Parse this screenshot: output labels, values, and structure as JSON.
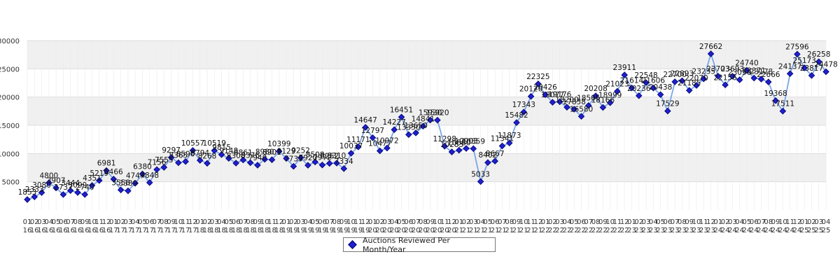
{
  "chart_data": {
    "type": "line",
    "title": "",
    "xlabel": "",
    "ylabel": "",
    "ylim": [
      0,
      30000
    ],
    "yticks": [
      5000,
      10000,
      15000,
      20000,
      25000,
      30000
    ],
    "ytick_labels": [
      "5000",
      "10000",
      "15000",
      "20000",
      "25000",
      "30000"
    ],
    "grid": true,
    "legend_position": "bottom-center",
    "line_color": "#7aa6e6",
    "marker_color": "#1f1fd0",
    "band_color": "#f0f0f0",
    "categories": [
      "01/16",
      "02/16",
      "03/16",
      "04/16",
      "05/16",
      "06/16",
      "07/16",
      "08/16",
      "09/16",
      "10/16",
      "11/16",
      "12/16",
      "01/17",
      "02/17",
      "03/17",
      "04/17",
      "05/17",
      "06/17",
      "07/17",
      "08/17",
      "09/17",
      "10/17",
      "11/17",
      "12/17",
      "01/18",
      "02/18",
      "03/18",
      "04/18",
      "05/18",
      "06/18",
      "07/18",
      "08/18",
      "09/18",
      "10/18",
      "11/18",
      "12/18",
      "01/19",
      "02/19",
      "03/19",
      "04/19",
      "05/19",
      "06/19",
      "07/19",
      "08/19",
      "09/19",
      "10/19",
      "11/19",
      "12/19",
      "01/20",
      "02/20",
      "03/20",
      "04/20",
      "05/20",
      "06/20",
      "07/20",
      "08/20",
      "09/20",
      "10/20",
      "11/20",
      "12/20",
      "01/21",
      "02/21",
      "03/21",
      "04/21",
      "05/21",
      "06/21",
      "07/21",
      "08/21",
      "09/21",
      "10/21",
      "11/21",
      "12/21",
      "01/22",
      "02/22",
      "03/22",
      "04/22",
      "05/22",
      "06/22",
      "07/22",
      "08/22",
      "09/22",
      "10/22",
      "11/22",
      "12/22",
      "01/23",
      "02/23",
      "03/23",
      "04/23",
      "05/23",
      "06/23",
      "07/23",
      "08/23",
      "09/23",
      "10/23",
      "11/23",
      "12/23",
      "01/24",
      "02/24",
      "03/24",
      "04/24",
      "05/24",
      "06/24",
      "07/24",
      "08/24",
      "09/24",
      "10/24",
      "11/24",
      "12/24",
      "01/25",
      "02/25",
      "03/25",
      "04/25"
    ],
    "series": [
      {
        "name": "Auctions Reviewed Per Month/Year",
        "values": [
          1853,
          2333,
          3080,
          4800,
          3907,
          2737,
          3444,
          3099,
          2740,
          4351,
          5219,
          6981,
          5466,
          3558,
          3389,
          4747,
          6380,
          4848,
          7156,
          7555,
          9297,
          8365,
          8590,
          10557,
          8794,
          8268,
          10519,
          9815,
          9148,
          8308,
          8861,
          8376,
          7940,
          8980,
          8901,
          10399,
          9129,
          7735,
          9252,
          7920,
          8508,
          7972,
          8252,
          8310,
          7334,
          10037,
          11171,
          14647,
          12797,
          10477,
          10972,
          14227,
          16451,
          13350,
          13650,
          14841,
          15930,
          15920,
          11298,
          10283,
          10580,
          10903,
          10859,
          5033,
          8402,
          8667,
          11341,
          11873,
          15482,
          17343,
          20120,
          22325,
          20426,
          19077,
          19176,
          18200,
          17858,
          16580,
          18505,
          20208,
          18166,
          18999,
          21023,
          23911,
          21614,
          20236,
          22548,
          21606,
          20438,
          17529,
          22700,
          22893,
          21185,
          22070,
          23235,
          27662,
          23703,
          22156,
          23693,
          23056,
          24740,
          23371,
          23178,
          22666,
          19368,
          17511,
          24137,
          27596,
          25173,
          23817,
          26258,
          24478
        ]
      }
    ],
    "data_labels": [
      "1853",
      "2333",
      "3080",
      "4800",
      "3907",
      "2737",
      "3444",
      "3099",
      "2740",
      "4351",
      "5219",
      "6981",
      "5466",
      "3558",
      "3389",
      "4747",
      "6380",
      "4848",
      "7156",
      "7555",
      "9297",
      "8365",
      "8590",
      "10557",
      "8794",
      "8268",
      "10519",
      "9815",
      "9148",
      "8308",
      "8861",
      "8376",
      "7940",
      "8980",
      "8901",
      "10399",
      "9129",
      "7735",
      "9252",
      "7920",
      "8508",
      "7972",
      "8252",
      "8310",
      "7334",
      "10037",
      "11171",
      "14647",
      "12797",
      "10477",
      "10972",
      "14227",
      "16451",
      "13350",
      "13650",
      "14841",
      "15930",
      "15920",
      "11298",
      "10283",
      "10580",
      "10903",
      "10859",
      "5033",
      "8402",
      "8667",
      "11341",
      "11873",
      "15482",
      "17343",
      "20120",
      "22325",
      "20426",
      "19077",
      "19176",
      "18200",
      "17858",
      "16580",
      "18505",
      "20208",
      "18166",
      "18999",
      "21023",
      "23911",
      "21614",
      "20236",
      "22548",
      "21606",
      "20438",
      "17529",
      "22700",
      "22893",
      "21185",
      "22070",
      "23235",
      "27662",
      "23703",
      "22156",
      "23693",
      "23056",
      "24740",
      "23371",
      "23178",
      "22666",
      "19368",
      "17511",
      "24137",
      "27596",
      "25173",
      "23817",
      "26258",
      "24478"
    ]
  }
}
